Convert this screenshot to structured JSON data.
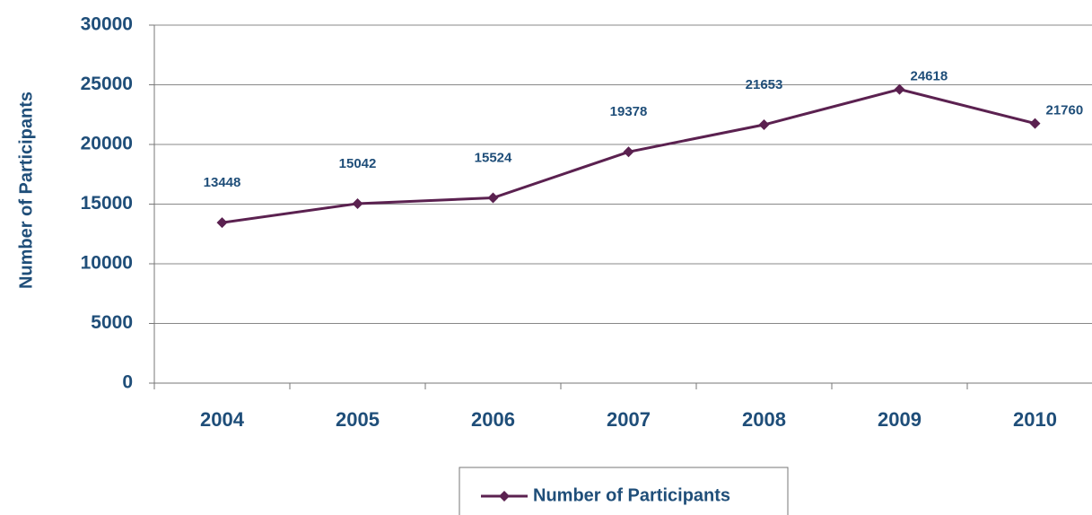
{
  "chart_data": {
    "type": "line",
    "ylabel": "Number of Participants",
    "categories": [
      "2004",
      "2005",
      "2006",
      "2007",
      "2008",
      "2009",
      "2010"
    ],
    "series": [
      {
        "name": "Number of Participants",
        "color": "#5b2150",
        "values": [
          13448,
          15042,
          15524,
          19378,
          21653,
          24618,
          21760
        ]
      }
    ],
    "ylim": [
      0,
      30000
    ],
    "yticks": [
      0,
      5000,
      10000,
      15000,
      20000,
      25000,
      30000
    ],
    "grid": true,
    "legend": "bottom"
  }
}
